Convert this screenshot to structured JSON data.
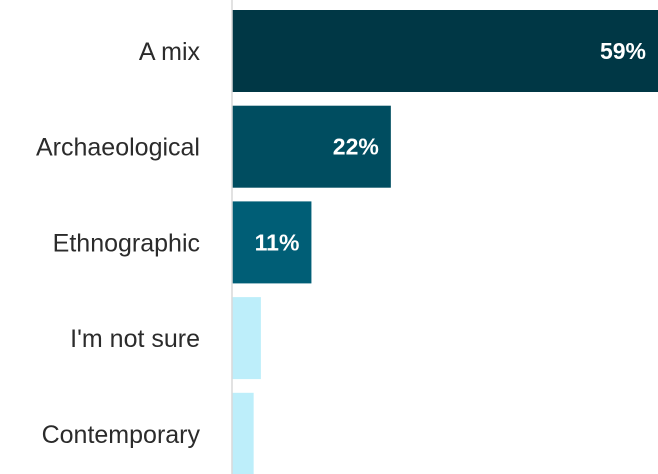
{
  "chart_data": {
    "type": "bar",
    "orientation": "horizontal",
    "categories": [
      "A mix",
      "Archaeological",
      "Ethnographic",
      "I'm not sure",
      "Contemporary"
    ],
    "values": [
      59,
      22,
      11,
      4,
      3
    ],
    "data_labels": [
      "59%",
      "22%",
      "11%",
      "",
      ""
    ],
    "unit": "%",
    "bar_colors": [
      "#003745",
      "#004d60",
      "#005e76",
      "#bdeefa",
      "#bdeefa"
    ],
    "label_color": "#ffffff",
    "axis_color": "#d9d9d9",
    "xlim": [
      0,
      59
    ],
    "grid": false,
    "legend": "none",
    "title": "",
    "xlabel": "",
    "ylabel": ""
  }
}
